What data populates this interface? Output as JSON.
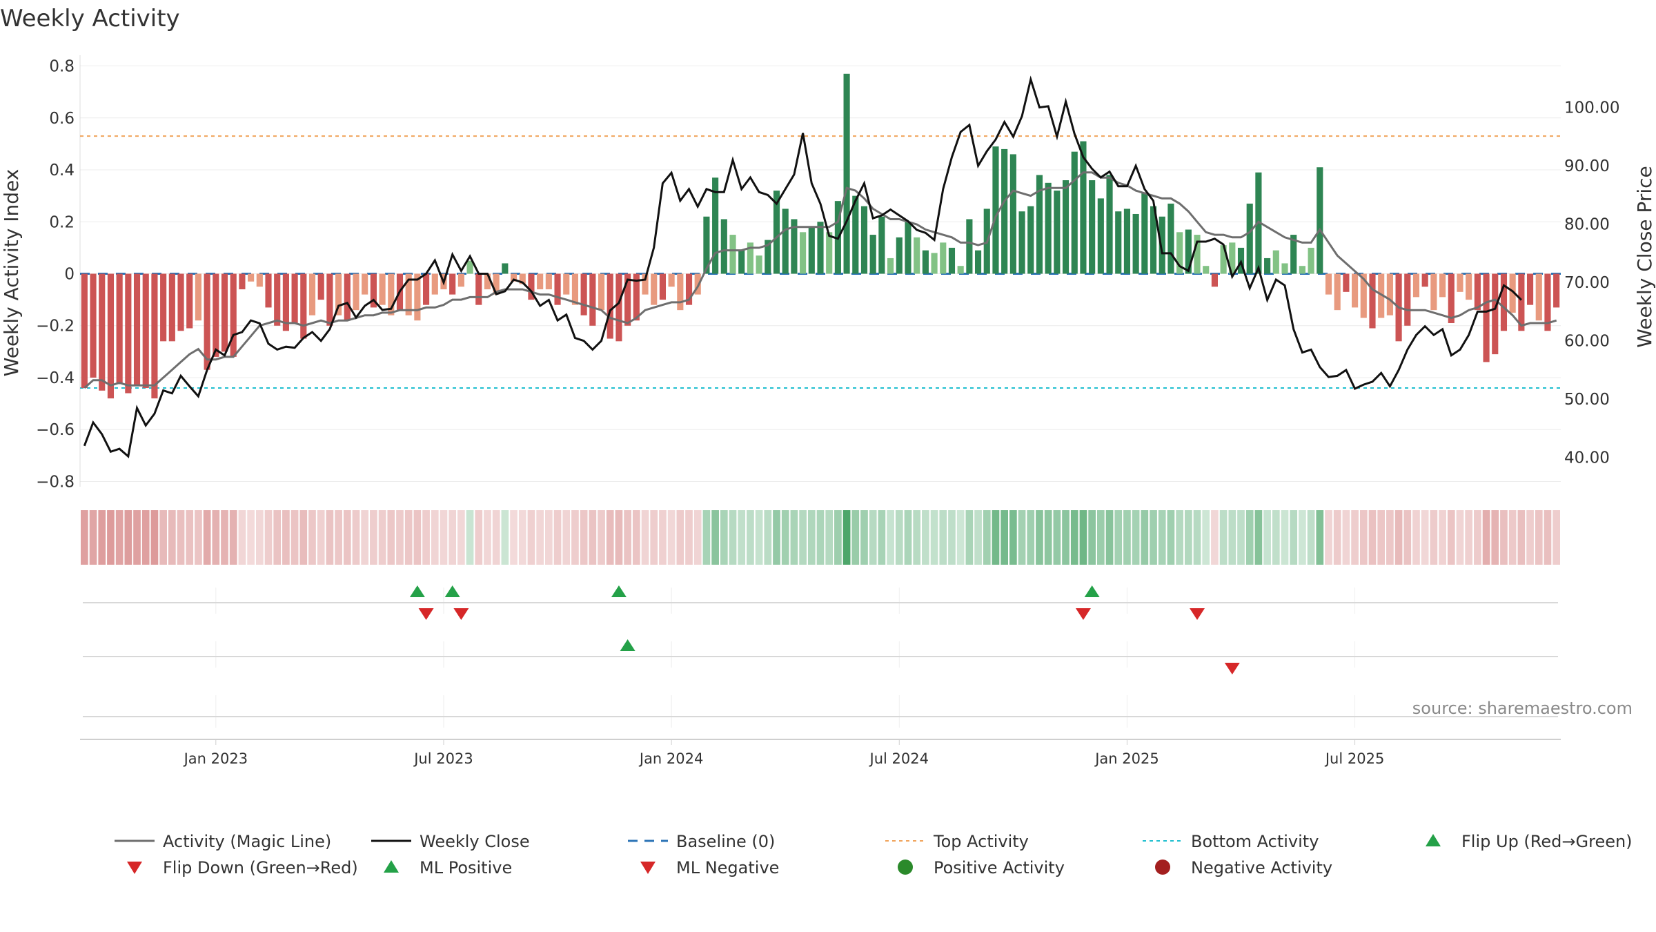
{
  "chart_data": {
    "type": "bar",
    "title": "Weekly Activity",
    "ylabel_left": "Weekly Activity Index",
    "ylabel_right": "Weekly Close Price",
    "ylim_left": [
      -0.82,
      0.82
    ],
    "ylim_right": [
      35,
      108
    ],
    "yticks_left": [
      {
        "value": 0.8,
        "label": "0.8"
      },
      {
        "value": 0.6,
        "label": "0.6"
      },
      {
        "value": 0.4,
        "label": "0.4"
      },
      {
        "value": 0.2,
        "label": "0.2"
      },
      {
        "value": 0,
        "label": "0"
      },
      {
        "value": -0.2,
        "label": "−0.2"
      },
      {
        "value": -0.4,
        "label": "−0.4"
      },
      {
        "value": -0.6,
        "label": "−0.6"
      },
      {
        "value": -0.8,
        "label": "−0.8"
      }
    ],
    "yticks_right": [
      {
        "value": 100,
        "label": "100.00"
      },
      {
        "value": 90,
        "label": "90.00"
      },
      {
        "value": 80,
        "label": "80.00"
      },
      {
        "value": 70,
        "label": "70.00"
      },
      {
        "value": 60,
        "label": "60.00"
      },
      {
        "value": 50,
        "label": "50.00"
      },
      {
        "value": 40,
        "label": "40.00"
      }
    ],
    "xticks": [
      {
        "week": 15,
        "label": "Jan 2023"
      },
      {
        "week": 41,
        "label": "Jul 2023"
      },
      {
        "week": 67,
        "label": "Jan 2024"
      },
      {
        "week": 93,
        "label": "Jul 2024"
      },
      {
        "week": 119,
        "label": "Jan 2025"
      },
      {
        "week": 145,
        "label": "Jul 2025"
      }
    ],
    "n_weeks": 157,
    "top_activity": 0.53,
    "bottom_activity": -0.44,
    "baseline": 0,
    "activity": [
      -0.44,
      -0.4,
      -0.45,
      -0.48,
      -0.42,
      -0.46,
      -0.43,
      -0.44,
      -0.48,
      -0.26,
      -0.26,
      -0.22,
      -0.21,
      -0.18,
      -0.37,
      -0.32,
      -0.3,
      -0.32,
      -0.06,
      -0.03,
      -0.05,
      -0.13,
      -0.2,
      -0.22,
      -0.19,
      -0.25,
      -0.16,
      -0.1,
      -0.2,
      -0.16,
      -0.18,
      -0.14,
      -0.08,
      -0.13,
      -0.12,
      -0.16,
      -0.14,
      -0.16,
      -0.18,
      -0.12,
      -0.08,
      -0.06,
      -0.08,
      -0.05,
      0.05,
      -0.12,
      -0.06,
      -0.08,
      0.04,
      -0.03,
      -0.04,
      -0.1,
      -0.06,
      -0.06,
      -0.12,
      -0.08,
      -0.12,
      -0.16,
      -0.2,
      -0.14,
      -0.25,
      -0.26,
      -0.2,
      -0.18,
      -0.08,
      -0.12,
      -0.1,
      -0.05,
      -0.14,
      -0.12,
      -0.08,
      0.22,
      0.37,
      0.21,
      0.15,
      0.09,
      0.12,
      0.07,
      0.13,
      0.32,
      0.25,
      0.21,
      0.16,
      0.18,
      0.2,
      0.16,
      0.28,
      0.77,
      0.3,
      0.26,
      0.15,
      0.22,
      0.06,
      0.14,
      0.2,
      0.14,
      0.09,
      0.08,
      0.12,
      0.1,
      0.03,
      0.21,
      0.09,
      0.25,
      0.49,
      0.48,
      0.46,
      0.24,
      0.26,
      0.38,
      0.35,
      0.32,
      0.36,
      0.47,
      0.51,
      0.36,
      0.29,
      0.38,
      0.24,
      0.25,
      0.23,
      0.31,
      0.26,
      0.22,
      0.27,
      0.16,
      0.17,
      0.15,
      0.03,
      -0.05,
      0.11,
      0.12,
      0.1,
      0.27,
      0.39,
      0.06,
      0.09,
      0.04,
      0.15,
      0.03,
      0.1,
      0.41,
      -0.08,
      -0.14,
      -0.07,
      -0.13,
      -0.17,
      -0.21,
      -0.17,
      -0.16,
      -0.26,
      -0.2,
      -0.09,
      -0.05,
      -0.14,
      -0.09,
      -0.19,
      -0.07
    ],
    "activity_tail": [
      -0.1,
      -0.14,
      -0.34,
      -0.31,
      -0.22,
      -0.15,
      -0.22,
      -0.12,
      -0.18,
      -0.22,
      -0.13
    ],
    "magic_line": [
      -0.44,
      -0.41,
      -0.41,
      -0.43,
      -0.42,
      -0.43,
      -0.43,
      -0.43,
      -0.43,
      -0.4,
      -0.37,
      -0.34,
      -0.31,
      -0.29,
      -0.33,
      -0.33,
      -0.32,
      -0.32,
      -0.28,
      -0.24,
      -0.2,
      -0.19,
      -0.18,
      -0.19,
      -0.19,
      -0.2,
      -0.19,
      -0.18,
      -0.19,
      -0.18,
      -0.18,
      -0.17,
      -0.16,
      -0.16,
      -0.15,
      -0.15,
      -0.14,
      -0.14,
      -0.14,
      -0.13,
      -0.13,
      -0.12,
      -0.1,
      -0.1,
      -0.09,
      -0.09,
      -0.09,
      -0.07,
      -0.06,
      -0.06,
      -0.06,
      -0.07,
      -0.08,
      -0.08,
      -0.09,
      -0.1,
      -0.11,
      -0.12,
      -0.13,
      -0.14,
      -0.17,
      -0.18,
      -0.19,
      -0.17,
      -0.14,
      -0.13,
      -0.12,
      -0.11,
      -0.11,
      -0.1,
      -0.05,
      0.02,
      0.08,
      0.09,
      0.09,
      0.09,
      0.1,
      0.1,
      0.11,
      0.14,
      0.17,
      0.18,
      0.18,
      0.18,
      0.18,
      0.18,
      0.2,
      0.33,
      0.32,
      0.29,
      0.25,
      0.23,
      0.21,
      0.21,
      0.2,
      0.19,
      0.17,
      0.16,
      0.15,
      0.14,
      0.12,
      0.12,
      0.11,
      0.12,
      0.22,
      0.28,
      0.32,
      0.31,
      0.3,
      0.32,
      0.33,
      0.33,
      0.33,
      0.36,
      0.39,
      0.39,
      0.37,
      0.37,
      0.35,
      0.34,
      0.32,
      0.31,
      0.3,
      0.29,
      0.29,
      0.27,
      0.24,
      0.2,
      0.16,
      0.15,
      0.15,
      0.14,
      0.14,
      0.16,
      0.2,
      0.18,
      0.16,
      0.14,
      0.13,
      0.12,
      0.12,
      0.17,
      0.12,
      0.07,
      0.04,
      0.01,
      -0.02,
      -0.06,
      -0.08,
      -0.1,
      -0.13,
      -0.14,
      -0.14,
      -0.14,
      -0.15,
      -0.16,
      -0.17,
      -0.16
    ],
    "magic_tail": [
      -0.14,
      -0.13,
      -0.11,
      -0.1,
      -0.13,
      -0.16,
      -0.2,
      -0.19,
      -0.19,
      -0.19,
      -0.18
    ],
    "weekly_close": [
      42,
      46,
      44,
      41,
      41.5,
      40.2,
      48.5,
      45.5,
      47.5,
      51.5,
      51,
      54,
      52.2,
      50.5,
      55,
      58.5,
      57.5,
      61,
      61.5,
      63.5,
      63,
      59.5,
      58.5,
      59,
      58.8,
      60.5,
      61.5,
      60,
      62,
      66,
      66.5,
      64,
      66,
      67,
      65.3,
      65.5,
      68.5,
      70.5,
      70.5,
      71.5,
      73.8,
      70,
      74.8,
      72,
      74.5,
      71.5,
      71.5,
      68,
      68.5,
      70.5,
      70,
      68.5,
      66,
      67,
      63.5,
      64.5,
      60.5,
      60,
      58.5,
      60,
      65.2,
      66.5,
      70.5,
      70.3,
      70.5,
      76,
      87,
      88.8,
      84,
      86,
      83,
      86,
      85.5,
      85.5,
      91,
      86,
      88,
      85.5,
      85,
      83.5,
      86,
      88.5,
      95.6,
      87,
      83.5,
      78,
      77.5,
      80.5,
      84,
      87,
      81,
      81.5,
      82.5,
      81.5,
      80.5,
      79,
      78.5,
      77.3,
      86,
      91.5,
      95.8,
      97,
      90,
      92.5,
      94.5,
      97.5,
      95,
      98.5,
      104.8,
      100,
      100.2,
      95,
      101,
      95.5,
      91.5,
      89.5,
      88,
      89,
      86.5,
      86.5,
      90,
      86,
      84,
      75,
      75,
      72.8,
      72,
      77,
      77,
      77.5,
      76.5,
      71,
      73.5,
      69,
      72.5,
      67,
      70.5,
      69.5,
      62,
      58,
      58.5,
      55.5,
      53.8,
      54,
      55,
      51.8,
      52.5,
      53,
      54.5,
      52.2,
      55,
      58.5,
      61,
      62.5,
      61
    ],
    "weekly_close_tail": [
      62,
      57.5,
      58.5,
      61,
      65,
      65,
      65.5,
      69.5,
      68.5,
      67
    ],
    "flip_up": [
      38,
      42,
      61,
      115
    ],
    "flip_down": [
      39,
      43,
      114,
      127
    ],
    "ml_positive": [
      62
    ],
    "ml_negative": [
      131
    ],
    "legend": [
      "Activity (Magic Line)",
      "Weekly Close",
      "Baseline (0)",
      "Top Activity",
      "Bottom Activity",
      "Flip Up (Red→Green)",
      "Flip Down (Green→Red)",
      "ML Positive",
      "ML Negative",
      "Positive Activity",
      "Negative Activity"
    ]
  },
  "source": "source: sharemaestro.com",
  "colors": {
    "magic_line": "#6e6e6e",
    "close": "#111111",
    "baseline": "#2b73b6",
    "top": "#f0a35a",
    "bottom": "#1fbfcf",
    "up": "#24a148",
    "down": "#d62728",
    "pos_strong": "#2e8553",
    "pos_light": "#82c285",
    "neg_strong": "#cc5454",
    "neg_light": "#e89a7f",
    "pos_dot": "#2b8a2b",
    "neg_dot": "#a31f1f"
  }
}
